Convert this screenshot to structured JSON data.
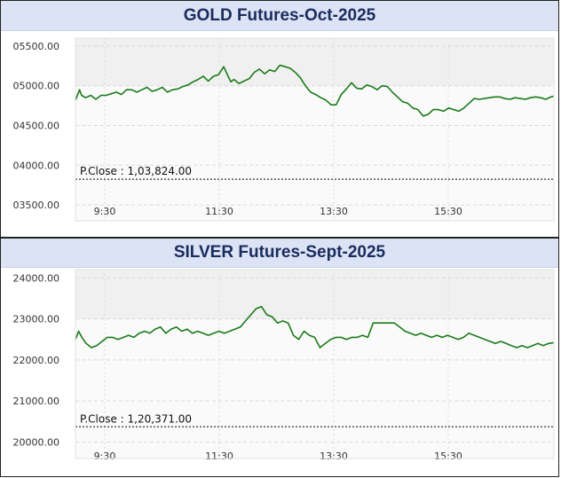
{
  "chart_data": [
    {
      "type": "line",
      "title": "GOLD Futures-Oct-2025",
      "xlabel": "",
      "ylabel": "",
      "x_ticks": [
        "9:30",
        "11:30",
        "13:30",
        "15:30"
      ],
      "y_ticks": [
        "05500.00",
        "05000.00",
        "04500.00",
        "04000.00",
        "03500.00"
      ],
      "ylim": [
        103300,
        105600
      ],
      "grid": true,
      "color": "#1a7a1a",
      "reference_line": {
        "label": "P.Close : 1,03,824.00",
        "value": 103824
      },
      "series": [
        {
          "values": [
            [
              0,
              104820
            ],
            [
              0.04,
              104950
            ],
            [
              0.06,
              104880
            ],
            [
              0.1,
              104850
            ],
            [
              0.15,
              104880
            ],
            [
              0.2,
              104830
            ],
            [
              0.25,
              104880
            ],
            [
              0.3,
              104880
            ],
            [
              0.35,
              104900
            ],
            [
              0.4,
              104920
            ],
            [
              0.45,
              104890
            ],
            [
              0.5,
              104950
            ],
            [
              0.55,
              104950
            ],
            [
              0.6,
              104920
            ],
            [
              0.65,
              104950
            ],
            [
              0.7,
              104980
            ],
            [
              0.75,
              104930
            ],
            [
              0.8,
              104950
            ],
            [
              0.85,
              104980
            ],
            [
              0.9,
              104920
            ],
            [
              0.95,
              104950
            ],
            [
              1.0,
              104960
            ],
            [
              1.05,
              104990
            ],
            [
              1.1,
              105010
            ],
            [
              1.15,
              105050
            ],
            [
              1.2,
              105080
            ],
            [
              1.25,
              105120
            ],
            [
              1.3,
              105060
            ],
            [
              1.35,
              105120
            ],
            [
              1.4,
              105140
            ],
            [
              1.45,
              105240
            ],
            [
              1.5,
              105100
            ],
            [
              1.52,
              105050
            ],
            [
              1.55,
              105080
            ],
            [
              1.6,
              105030
            ],
            [
              1.65,
              105060
            ],
            [
              1.7,
              105090
            ],
            [
              1.75,
              105170
            ],
            [
              1.8,
              105210
            ],
            [
              1.85,
              105150
            ],
            [
              1.9,
              105200
            ],
            [
              1.95,
              105180
            ],
            [
              2.0,
              105260
            ],
            [
              2.05,
              105240
            ],
            [
              2.1,
              105220
            ],
            [
              2.15,
              105170
            ],
            [
              2.2,
              105100
            ],
            [
              2.25,
              105000
            ],
            [
              2.3,
              104920
            ],
            [
              2.35,
              104890
            ],
            [
              2.4,
              104850
            ],
            [
              2.45,
              104820
            ],
            [
              2.5,
              104760
            ],
            [
              2.55,
              104760
            ],
            [
              2.6,
              104890
            ],
            [
              2.65,
              104960
            ],
            [
              2.7,
              105040
            ],
            [
              2.75,
              104970
            ],
            [
              2.8,
              104960
            ],
            [
              2.85,
              105010
            ],
            [
              2.9,
              104990
            ],
            [
              2.95,
              104950
            ],
            [
              3.0,
              105000
            ],
            [
              3.05,
              104990
            ],
            [
              3.1,
              104920
            ],
            [
              3.15,
              104860
            ],
            [
              3.2,
              104800
            ],
            [
              3.25,
              104780
            ],
            [
              3.3,
              104720
            ],
            [
              3.35,
              104700
            ],
            [
              3.4,
              104620
            ],
            [
              3.45,
              104640
            ],
            [
              3.5,
              104700
            ],
            [
              3.55,
              104700
            ],
            [
              3.6,
              104680
            ],
            [
              3.65,
              104720
            ],
            [
              3.7,
              104700
            ],
            [
              3.75,
              104680
            ],
            [
              3.8,
              104720
            ],
            [
              3.85,
              104780
            ],
            [
              3.9,
              104840
            ],
            [
              3.95,
              104830
            ],
            [
              4.0,
              104840
            ],
            [
              4.05,
              104850
            ],
            [
              4.1,
              104860
            ],
            [
              4.15,
              104860
            ],
            [
              4.2,
              104840
            ],
            [
              4.25,
              104830
            ],
            [
              4.3,
              104850
            ],
            [
              4.35,
              104840
            ],
            [
              4.4,
              104830
            ],
            [
              4.45,
              104850
            ],
            [
              4.5,
              104860
            ],
            [
              4.55,
              104850
            ],
            [
              4.6,
              104830
            ],
            [
              4.65,
              104860
            ],
            [
              4.68,
              104870
            ]
          ]
        }
      ]
    },
    {
      "type": "line",
      "title": "SILVER Futures-Sept-2025",
      "xlabel": "",
      "ylabel": "",
      "x_ticks": [
        "9:30",
        "11:30",
        "13:30",
        "15:30"
      ],
      "y_ticks": [
        "24000.00",
        "23000.00",
        "22000.00",
        "21000.00",
        "20000.00"
      ],
      "ylim": [
        119600,
        124200
      ],
      "grid": true,
      "color": "#1a7a1a",
      "reference_line": {
        "label": "P.Close : 1,20,371.00",
        "value": 120371
      },
      "series": [
        {
          "values": [
            [
              0,
              122500
            ],
            [
              0.03,
              122700
            ],
            [
              0.06,
              122550
            ],
            [
              0.1,
              122400
            ],
            [
              0.15,
              122300
            ],
            [
              0.2,
              122350
            ],
            [
              0.25,
              122450
            ],
            [
              0.3,
              122550
            ],
            [
              0.35,
              122550
            ],
            [
              0.4,
              122500
            ],
            [
              0.45,
              122550
            ],
            [
              0.5,
              122600
            ],
            [
              0.55,
              122550
            ],
            [
              0.6,
              122650
            ],
            [
              0.65,
              122700
            ],
            [
              0.7,
              122650
            ],
            [
              0.75,
              122750
            ],
            [
              0.8,
              122800
            ],
            [
              0.85,
              122650
            ],
            [
              0.9,
              122750
            ],
            [
              0.95,
              122800
            ],
            [
              1.0,
              122700
            ],
            [
              1.05,
              122750
            ],
            [
              1.1,
              122650
            ],
            [
              1.15,
              122700
            ],
            [
              1.2,
              122650
            ],
            [
              1.25,
              122600
            ],
            [
              1.3,
              122650
            ],
            [
              1.35,
              122700
            ],
            [
              1.4,
              122650
            ],
            [
              1.45,
              122700
            ],
            [
              1.5,
              122750
            ],
            [
              1.55,
              122800
            ],
            [
              1.6,
              122950
            ],
            [
              1.65,
              123100
            ],
            [
              1.7,
              123250
            ],
            [
              1.75,
              123300
            ],
            [
              1.8,
              123100
            ],
            [
              1.85,
              123050
            ],
            [
              1.9,
              122900
            ],
            [
              1.95,
              122950
            ],
            [
              2.0,
              122900
            ],
            [
              2.05,
              122600
            ],
            [
              2.1,
              122500
            ],
            [
              2.15,
              122700
            ],
            [
              2.2,
              122600
            ],
            [
              2.25,
              122550
            ],
            [
              2.3,
              122300
            ],
            [
              2.35,
              122400
            ],
            [
              2.4,
              122500
            ],
            [
              2.45,
              122550
            ],
            [
              2.5,
              122550
            ],
            [
              2.55,
              122500
            ],
            [
              2.6,
              122550
            ],
            [
              2.65,
              122550
            ],
            [
              2.7,
              122600
            ],
            [
              2.75,
              122550
            ],
            [
              2.8,
              122900
            ],
            [
              2.85,
              122900
            ],
            [
              2.9,
              122900
            ],
            [
              2.95,
              122900
            ],
            [
              3.0,
              122900
            ],
            [
              3.05,
              122800
            ],
            [
              3.1,
              122700
            ],
            [
              3.15,
              122650
            ],
            [
              3.2,
              122600
            ],
            [
              3.25,
              122650
            ],
            [
              3.3,
              122600
            ],
            [
              3.35,
              122550
            ],
            [
              3.4,
              122600
            ],
            [
              3.45,
              122550
            ],
            [
              3.5,
              122600
            ],
            [
              3.55,
              122550
            ],
            [
              3.6,
              122500
            ],
            [
              3.65,
              122550
            ],
            [
              3.7,
              122650
            ],
            [
              3.75,
              122600
            ],
            [
              3.8,
              122550
            ],
            [
              3.85,
              122500
            ],
            [
              3.9,
              122450
            ],
            [
              3.95,
              122400
            ],
            [
              4.0,
              122450
            ],
            [
              4.05,
              122400
            ],
            [
              4.1,
              122350
            ],
            [
              4.15,
              122300
            ],
            [
              4.2,
              122350
            ],
            [
              4.25,
              122300
            ],
            [
              4.3,
              122350
            ],
            [
              4.35,
              122400
            ],
            [
              4.4,
              122350
            ],
            [
              4.45,
              122400
            ],
            [
              4.5,
              122420
            ]
          ]
        }
      ]
    }
  ]
}
